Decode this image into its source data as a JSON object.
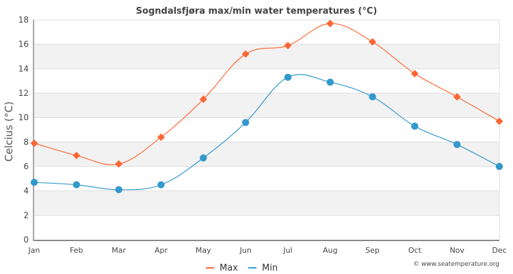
{
  "chart_data": {
    "type": "line",
    "title": "Sogndalsfjøra max/min water temperatures (°C)",
    "xlabel": "",
    "ylabel": "Celcius (°C)",
    "categories": [
      "Jan",
      "Feb",
      "Mar",
      "Apr",
      "May",
      "Jun",
      "Jul",
      "Aug",
      "Sep",
      "Oct",
      "Nov",
      "Dec"
    ],
    "ylim": [
      0,
      18
    ],
    "yticks": [
      0,
      2,
      4,
      6,
      8,
      10,
      12,
      14,
      16,
      18
    ],
    "grid": true,
    "legend_position": "bottom-center",
    "series": [
      {
        "name": "Max",
        "color": "#ff6633",
        "marker": "diamond",
        "values": [
          7.9,
          6.9,
          6.2,
          8.4,
          11.5,
          15.2,
          15.9,
          17.7,
          16.2,
          13.6,
          11.7,
          9.7
        ]
      },
      {
        "name": "Min",
        "color": "#3399cc",
        "marker": "circle",
        "values": [
          4.7,
          4.5,
          4.1,
          4.5,
          6.7,
          9.6,
          13.3,
          12.9,
          11.7,
          9.3,
          7.8,
          6.0
        ]
      }
    ],
    "credit": "© www.seatemperature.org"
  },
  "colors": {
    "band": "#f2f2f2",
    "grid": "#dddddd",
    "axis": "#888888"
  }
}
